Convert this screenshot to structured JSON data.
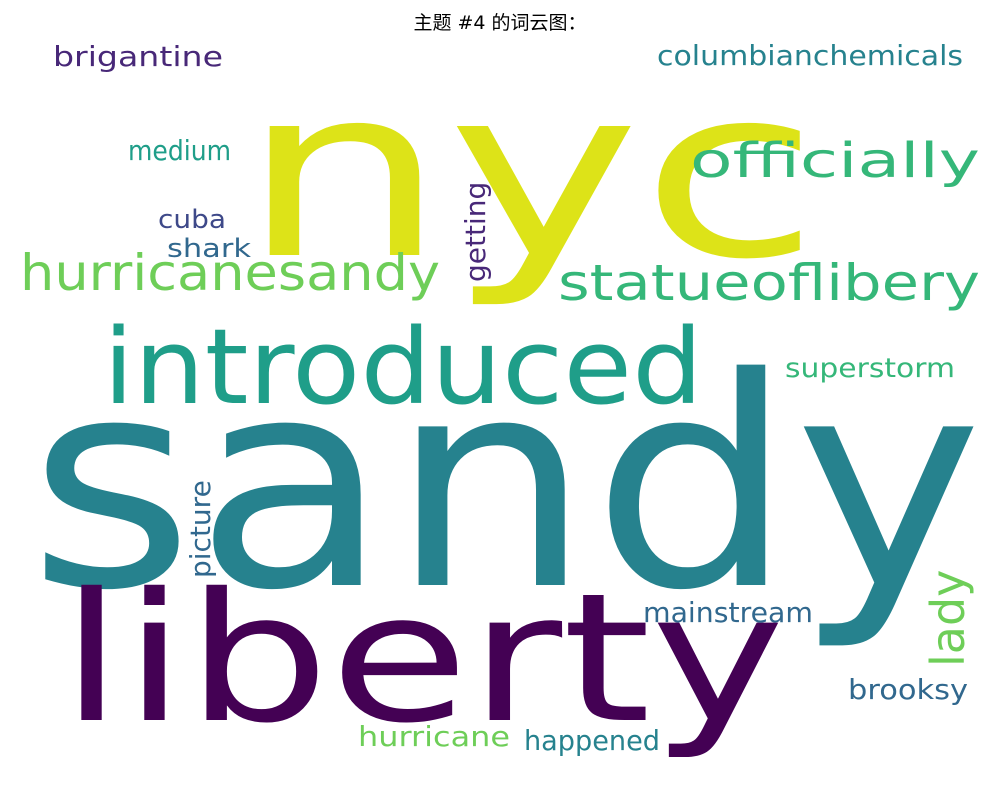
{
  "title": "主题 #4 的词云图：",
  "colors": {
    "dark_purple": "#440154",
    "purple": "#482878",
    "indigo": "#3e4989",
    "blue": "#31688e",
    "teal_blue": "#26828e",
    "teal": "#1f9e89",
    "green": "#35b779",
    "light_green": "#6ece58",
    "yellow": "#dde318"
  },
  "words": {
    "sandy": "sandy",
    "nyc": "nyc",
    "liberty": "liberty",
    "introduced": "introduced",
    "hurricanesandy": "hurricanesandy",
    "statueoflibery": "statueoflibery",
    "officially": "officially",
    "columbianchemicals": "columbianchemicals",
    "brigantine": "brigantine",
    "medium": "medium",
    "cuba": "cuba",
    "shark": "shark",
    "getting": "getting",
    "superstorm": "superstorm",
    "picture": "picture",
    "lady": "lady",
    "mainstream": "mainstream",
    "brooksy": "brooksy",
    "hurricane": "hurricane",
    "happened": "happened"
  }
}
